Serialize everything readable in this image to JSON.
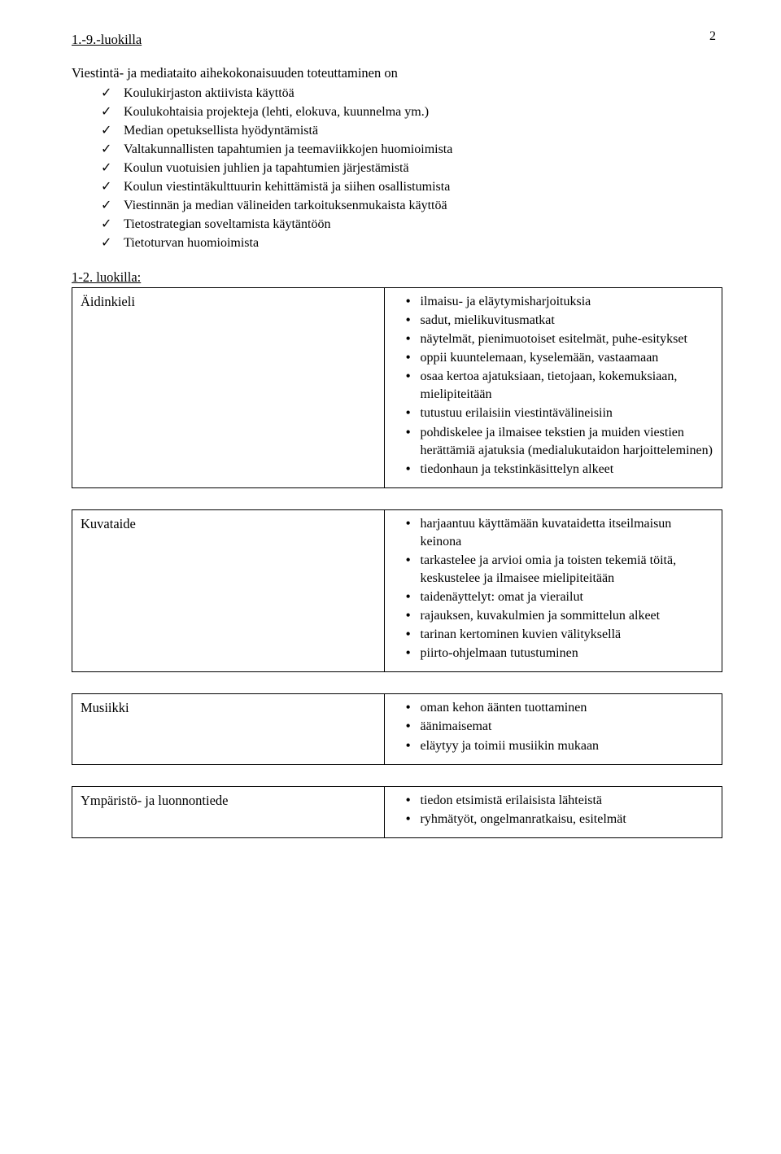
{
  "page_number": "2",
  "heading1": "1.-9.-luokilla",
  "intro": "Viestintä- ja mediataito aihekokonaisuuden toteuttaminen on",
  "checks": [
    "Koulukirjaston aktiivista käyttöä",
    "Koulukohtaisia projekteja (lehti, elokuva, kuunnelma ym.)",
    "Median opetuksellista hyödyntämistä",
    "Valtakunnallisten tapahtumien ja teemaviikkojen huomioimista",
    "Koulun vuotuisien juhlien ja tapahtumien järjestämistä",
    "Koulun viestintäkulttuurin kehittämistä ja siihen osallistumista",
    "Viestinnän ja median välineiden tarkoituksenmukaista käyttöä",
    "Tietostrategian soveltamista käytäntöön",
    "Tietoturvan huomioimista"
  ],
  "grade_heading": "1-2. luokilla:",
  "rows": [
    {
      "subject": "Äidinkieli",
      "items": [
        "ilmaisu- ja eläytymisharjoituksia",
        "sadut, mielikuvitusmatkat",
        "näytelmät, pienimuotoiset esitelmät, puhe-esitykset",
        "oppii kuuntelemaan, kyselemään, vastaamaan",
        "osaa kertoa ajatuksiaan, tietojaan, kokemuksiaan, mielipiteitään",
        "tutustuu erilaisiin viestintävälineisiin",
        "pohdiskelee ja ilmaisee tekstien ja muiden viestien herättämiä ajatuksia (medialukutaidon harjoitteleminen)",
        "tiedonhaun ja  tekstinkäsittelyn alkeet"
      ]
    },
    {
      "subject": "Kuvataide",
      "items": [
        "harjaantuu käyttämään kuvataidetta itseilmaisun keinona",
        "tarkastelee ja arvioi omia ja toisten tekemiä töitä, keskustelee ja ilmaisee mielipiteitään",
        "taidenäyttelyt: omat ja vierailut",
        "rajauksen, kuvakulmien ja sommittelun alkeet",
        "tarinan kertominen kuvien välityksellä",
        "piirto-ohjelmaan tutustuminen"
      ]
    },
    {
      "subject": "Musiikki",
      "items": [
        "oman kehon äänten tuottaminen",
        "äänimaisemat",
        "eläytyy ja toimii musiikin mukaan"
      ]
    },
    {
      "subject": "Ympäristö- ja luonnontiede",
      "items": [
        "tiedon etsimistä erilaisista lähteistä",
        "ryhmätyöt, ongelmanratkaisu, esitelmät"
      ]
    }
  ]
}
